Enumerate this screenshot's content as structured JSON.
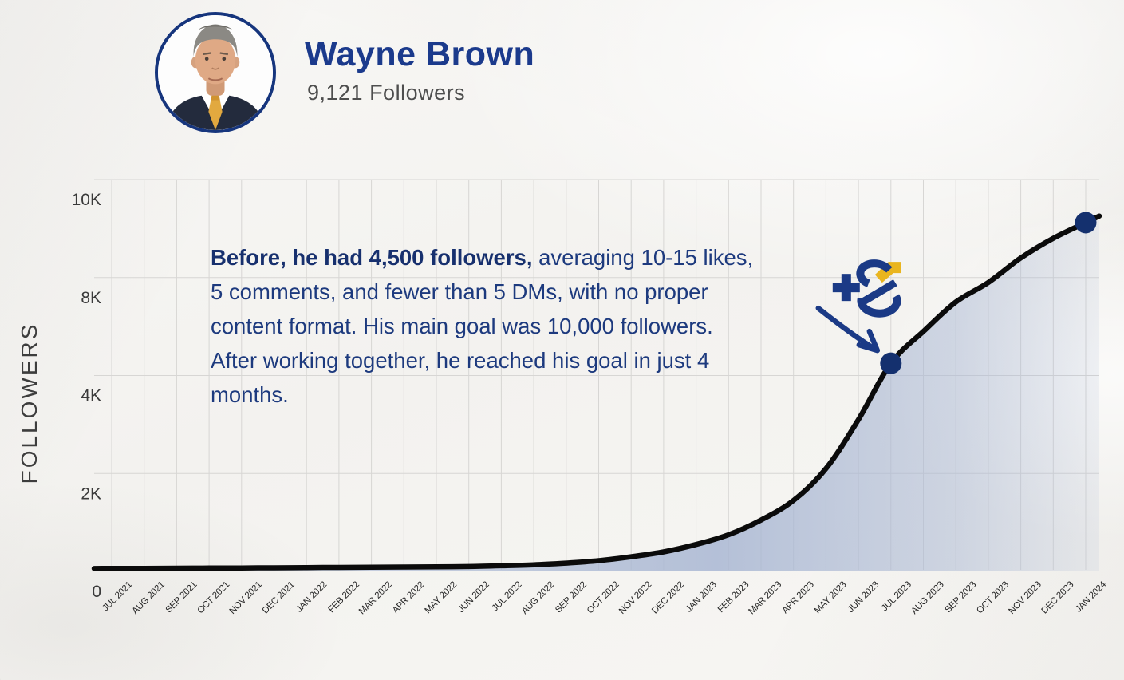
{
  "profile": {
    "name": "Wayne Brown",
    "followers_count": "9,121 Followers"
  },
  "annotation": {
    "lines": [
      {
        "bold": "Before, he had 4,500 followers,",
        "regular": " averaging 10-15 likes,"
      },
      {
        "bold": "",
        "regular": "5 comments, and fewer than 5 DMs, with no proper"
      },
      {
        "bold": "",
        "regular": "content format. His main goal was 10,000 followers."
      },
      {
        "bold": "",
        "regular": "After working together, he reached his goal in just 4"
      },
      {
        "bold": "",
        "regular": "months."
      }
    ]
  },
  "chart_data": {
    "type": "area",
    "title": "",
    "xlabel": "",
    "ylabel": "FOLLOWERS",
    "categories": [
      "JUL 2021",
      "AUG 2021",
      "SEP 2021",
      "OCT 2021",
      "NOV 2021",
      "DEC 2021",
      "JAN 2022",
      "FEB 2022",
      "MAR 2022",
      "APR 2022",
      "MAY 2022",
      "JUN 2022",
      "JUL 2022",
      "AUG 2022",
      "SEP 2022",
      "OCT 2022",
      "NOV 2022",
      "DEC 2022",
      "JAN 2023",
      "FEB 2023",
      "MAR 2023",
      "APR 2023",
      "MAY 2023",
      "JUN 2023",
      "JUL 2023",
      "AUG 2023",
      "SEP 2023",
      "OCT 2023",
      "NOV 2023",
      "DEC 2023",
      "JAN 2024"
    ],
    "series": [
      {
        "name": "Followers",
        "values": [
          60,
          62,
          65,
          68,
          70,
          74,
          78,
          82,
          86,
          90,
          95,
          100,
          115,
          135,
          170,
          220,
          300,
          400,
          550,
          750,
          1050,
          1450,
          2100,
          3100,
          4500,
          5800,
          7000,
          7800,
          8400,
          8800,
          9121
        ]
      }
    ],
    "yticks": [
      {
        "label": "0",
        "value": 0
      },
      {
        "label": "2K",
        "value": 2000
      },
      {
        "label": "4K",
        "value": 4000
      },
      {
        "label": "8K",
        "value": 8000
      },
      {
        "label": "10K",
        "value": 10000
      }
    ],
    "grid": true,
    "legend": "none",
    "highlight_points": [
      {
        "category": "JUL 2023",
        "value": 4500
      },
      {
        "category": "JAN 2024",
        "value": 9121
      }
    ],
    "line_color": "#0b0b0b",
    "area_color": "#a9b7d3",
    "accent_navy": "#1b3a86",
    "accent_yellow": "#e9b51f",
    "dot_color": "#14306e",
    "grid_color": "#d7d6d4"
  },
  "logo": {
    "plus_symbol": "+",
    "letter": "S"
  }
}
